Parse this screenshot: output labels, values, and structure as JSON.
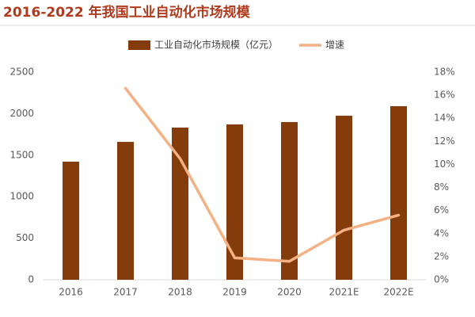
{
  "chart_data": {
    "type": "bar-line",
    "title": "2016-2022 年我国工业自动化市场规模",
    "categories": [
      "2016",
      "2017",
      "2018",
      "2019",
      "2020",
      "2021E",
      "2022E"
    ],
    "series": [
      {
        "name": "工业自动化市场规模（亿元）",
        "type": "bar",
        "color": "#843c0c",
        "values": [
          1422,
          1660,
          1832,
          1870,
          1899,
          1975,
          2090
        ]
      },
      {
        "name": "增速",
        "type": "line",
        "axis": "y2",
        "color": "#f4b183",
        "values": [
          null,
          16.6,
          10.5,
          1.9,
          1.6,
          4.3,
          5.6
        ]
      }
    ],
    "ylim": [
      0,
      2500
    ],
    "yticks": [
      0,
      500,
      1000,
      1500,
      2000,
      2500
    ],
    "y2lim": [
      0,
      18
    ],
    "y2ticks": [
      {
        "value": 0,
        "label": "0%"
      },
      {
        "value": 2,
        "label": "2%"
      },
      {
        "value": 4,
        "label": "4%"
      },
      {
        "value": 6,
        "label": "6%"
      },
      {
        "value": 8,
        "label": "8%"
      },
      {
        "value": 10,
        "label": "10%"
      },
      {
        "value": 12,
        "label": "12%"
      },
      {
        "value": 14,
        "label": "14%"
      },
      {
        "value": 16,
        "label": "16%"
      },
      {
        "value": 18,
        "label": "18%"
      }
    ],
    "grid": false,
    "legend": "top"
  }
}
